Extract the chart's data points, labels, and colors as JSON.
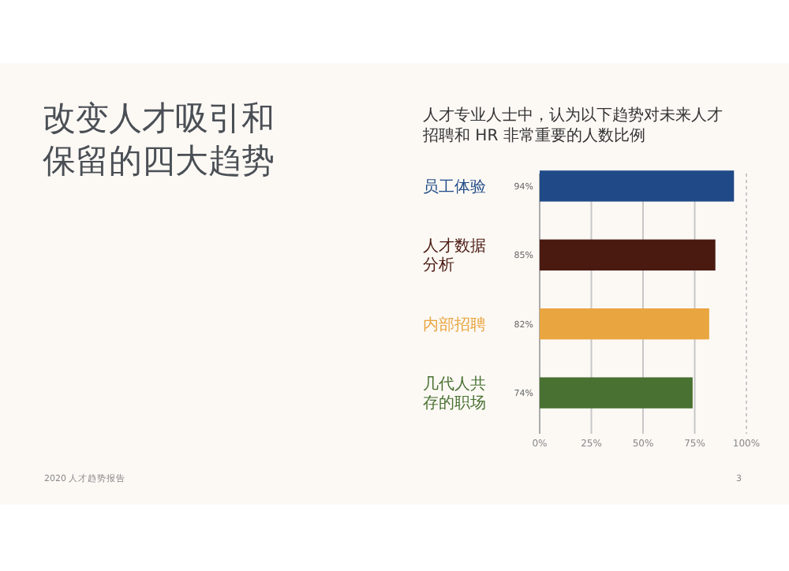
{
  "chart_data": {
    "type": "bar",
    "orientation": "horizontal",
    "title": "改变人才吸引和保留的四大趋势",
    "subtitle": "人才专业人士中，认为以下趋势对未来人才招聘和 HR 非常重要的人数比例",
    "categories": [
      "员工体验",
      "人才数据分析",
      "内部招聘",
      "几代人共存的职场"
    ],
    "values": [
      94,
      85,
      82,
      74
    ],
    "colors": [
      "#1f4a87",
      "#4a1a10",
      "#e9a53f",
      "#497131"
    ],
    "value_labels": [
      "94%",
      "85%",
      "82%",
      "74%"
    ],
    "xlim": [
      0,
      100
    ],
    "xticks": [
      {
        "value": 0,
        "label": "0%"
      },
      {
        "value": 25,
        "label": "25%"
      },
      {
        "value": 50,
        "label": "50%"
      },
      {
        "value": 75,
        "label": "75%"
      },
      {
        "value": 100,
        "label": "100%"
      }
    ],
    "grid": "x",
    "annotations": [
      "2020 人才趋势报告",
      "3"
    ]
  }
}
